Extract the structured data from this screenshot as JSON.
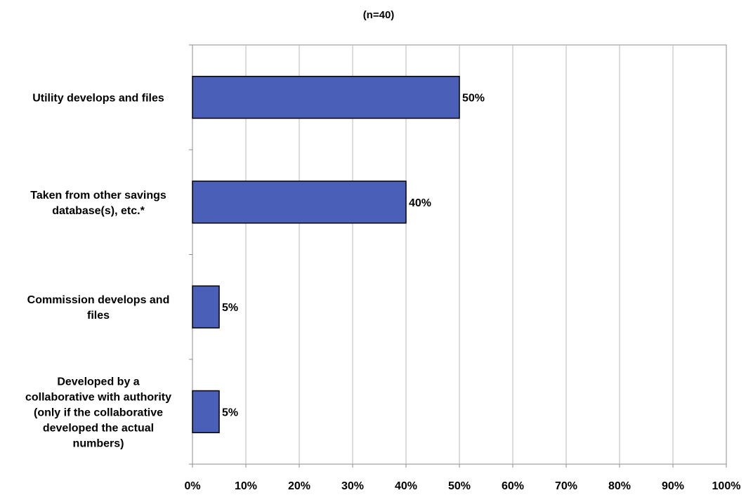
{
  "chart_data": {
    "type": "bar",
    "orientation": "horizontal",
    "title": "",
    "subtitle": "(n=40)",
    "xlabel": "",
    "ylabel": "",
    "categories": [
      [
        "Utility develops and files"
      ],
      [
        "Taken from other savings",
        "database(s), etc.*"
      ],
      [
        "Commission develops and",
        "files"
      ],
      [
        "Developed by a",
        "collaborative with authority",
        "(only if the collaborative",
        "developed the actual",
        "numbers)"
      ]
    ],
    "values": [
      50,
      40,
      5,
      5
    ],
    "value_labels": [
      "50%",
      "40%",
      "5%",
      "5%"
    ],
    "xlim": [
      0,
      100
    ],
    "xticks": [
      0,
      10,
      20,
      30,
      40,
      50,
      60,
      70,
      80,
      90,
      100
    ],
    "xtick_labels": [
      "0%",
      "10%",
      "20%",
      "30%",
      "40%",
      "50%",
      "60%",
      "70%",
      "80%",
      "90%",
      "100%"
    ],
    "grid": "vertical",
    "legend": "none",
    "colors": {
      "bar_fill": "#4a5fb8",
      "bar_stroke": "#000000",
      "gridline": "#b9b9b9",
      "axis": "#8c8c8c",
      "text": "#000000"
    }
  }
}
